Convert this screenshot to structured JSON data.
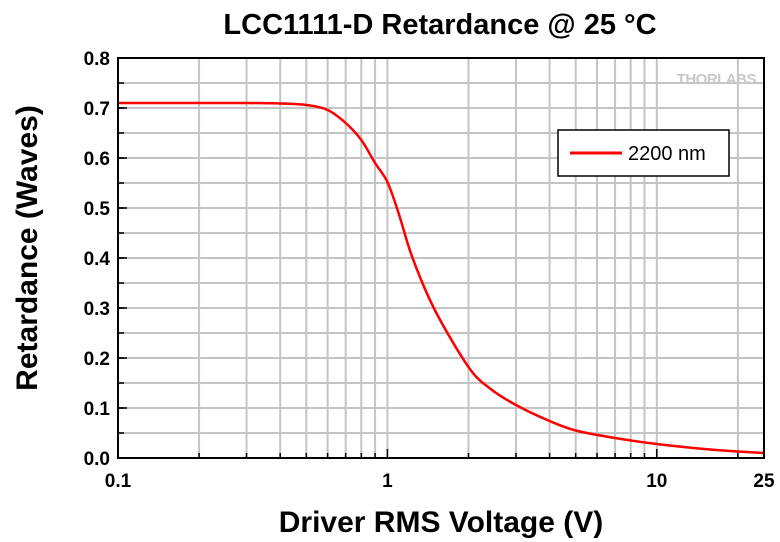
{
  "chart_data": {
    "type": "line",
    "title": "LCC1111-D Retardance @ 25 °C",
    "xlabel": "Driver RMS Voltage (V)",
    "ylabel": "Retardance (Waves)",
    "xscale": "log",
    "xlim": [
      0.1,
      25
    ],
    "ylim": [
      0.0,
      0.8
    ],
    "xticks": [
      0.1,
      1,
      10,
      25
    ],
    "xtick_labels": [
      "0.1",
      "1",
      "10",
      "25"
    ],
    "yticks": [
      0.0,
      0.1,
      0.2,
      0.3,
      0.4,
      0.5,
      0.6,
      0.7,
      0.8
    ],
    "ytick_labels": [
      "0.0",
      "0.1",
      "0.2",
      "0.3",
      "0.4",
      "0.5",
      "0.6",
      "0.7",
      "0.8"
    ],
    "grid": true,
    "legend_position": "top-right",
    "logo": "THORLABS",
    "series": [
      {
        "name": "2200 nm",
        "color": "#ff0000",
        "x": [
          0.1,
          0.2,
          0.3,
          0.4,
          0.5,
          0.6,
          0.7,
          0.8,
          0.9,
          1.0,
          1.1,
          1.24,
          1.5,
          2.0,
          2.39,
          3.0,
          4.0,
          5.0,
          7.0,
          10.0,
          15.0,
          20.0,
          25.0
        ],
        "y": [
          0.71,
          0.71,
          0.71,
          0.709,
          0.706,
          0.696,
          0.67,
          0.636,
          0.59,
          0.552,
          0.49,
          0.4,
          0.296,
          0.182,
          0.14,
          0.106,
          0.074,
          0.055,
          0.04,
          0.028,
          0.018,
          0.013,
          0.01
        ]
      }
    ]
  }
}
